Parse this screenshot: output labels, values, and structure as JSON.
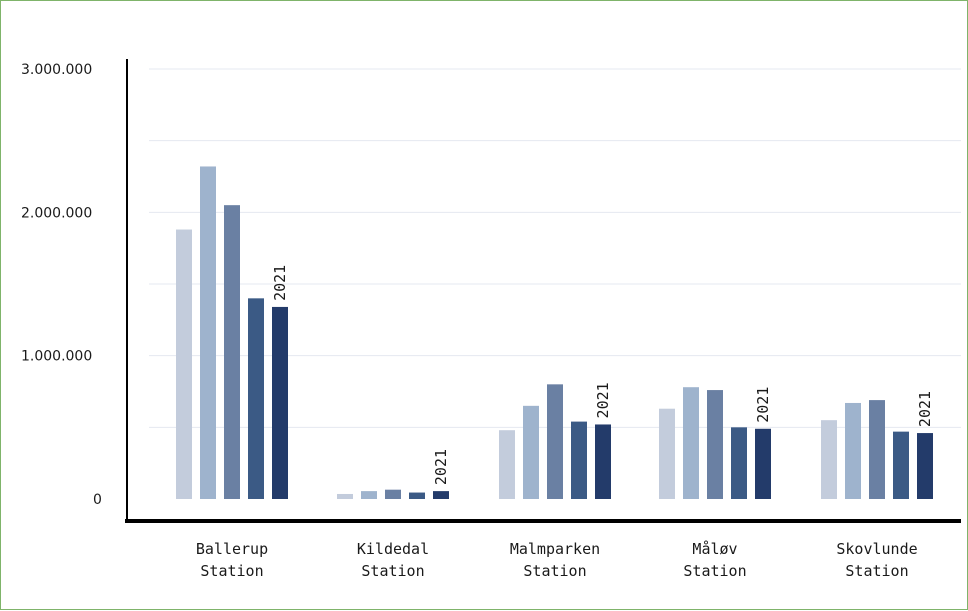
{
  "chart_data": {
    "type": "bar",
    "title": "",
    "xlabel": "",
    "ylabel": "",
    "ylim": [
      0,
      3000000
    ],
    "grid": true,
    "legend": "none",
    "y_ticks": [
      {
        "value": 0,
        "label": "0"
      },
      {
        "value": 1000000,
        "label": "1.000.000"
      },
      {
        "value": 2000000,
        "label": "2.000.000"
      },
      {
        "value": 3000000,
        "label": "3.000.000"
      }
    ],
    "categories": [
      {
        "line1": "Ballerup",
        "line2": "Station"
      },
      {
        "line1": "Kildedal",
        "line2": "Station"
      },
      {
        "line1": "Malmparken",
        "line2": "Station"
      },
      {
        "line1": "Måløv",
        "line2": "Station"
      },
      {
        "line1": "Skovlunde",
        "line2": "Station"
      }
    ],
    "series": [
      {
        "color": "#c3ccdc",
        "values": [
          1880000,
          35000,
          480000,
          630000,
          550000
        ]
      },
      {
        "color": "#9eb3cd",
        "values": [
          2320000,
          55000,
          650000,
          780000,
          670000
        ]
      },
      {
        "color": "#6a80a3",
        "values": [
          2050000,
          65000,
          800000,
          760000,
          690000
        ]
      },
      {
        "color": "#3b5a85",
        "values": [
          1400000,
          45000,
          540000,
          500000,
          470000
        ]
      },
      {
        "name": "2021",
        "color": "#233b6a",
        "values": [
          1340000,
          55000,
          520000,
          490000,
          460000
        ]
      }
    ],
    "annotation_series_index": 4
  }
}
